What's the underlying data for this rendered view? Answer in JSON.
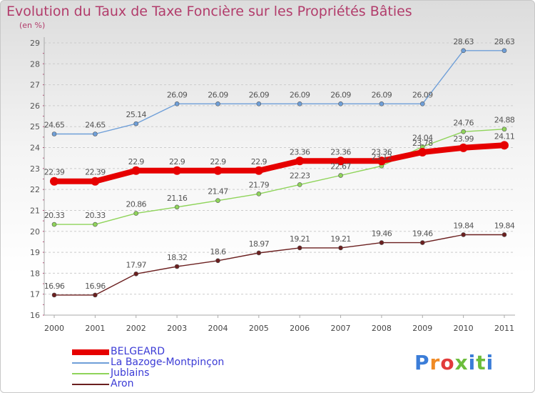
{
  "header": {
    "title": "Evolution du Taux de Taxe Foncière sur les Propriétés Bâties",
    "subtitle": "(en %)"
  },
  "logo": {
    "text": "Proxiti",
    "colors": [
      "#3b7dd8",
      "#f08a24",
      "#e23b3b",
      "#6cbd3c",
      "#3b7dd8",
      "#6cbd3c",
      "#3b7dd8"
    ]
  },
  "chart_data": {
    "type": "line",
    "title": "Evolution du Taux de Taxe Foncière sur les Propriétés Bâties",
    "ylabel": "(en %)",
    "categories": [
      "2000",
      "2001",
      "2002",
      "2003",
      "2004",
      "2005",
      "2006",
      "2007",
      "2008",
      "2009",
      "2010",
      "2011"
    ],
    "ylim": [
      16,
      29
    ],
    "yticks": [
      16,
      17,
      18,
      19,
      20,
      21,
      22,
      23,
      24,
      25,
      26,
      27,
      28,
      29
    ],
    "grid": "horizontal dashed",
    "legend_position": "bottom-left",
    "series": [
      {
        "name": "BELGEARD",
        "color": "#e60000",
        "width": 8,
        "values": [
          22.39,
          22.39,
          22.9,
          22.9,
          22.9,
          22.9,
          23.36,
          23.36,
          23.36,
          23.78,
          23.99,
          24.11
        ],
        "labels": [
          "22.39",
          "22.39",
          "22.9",
          "22.9",
          "22.9",
          "22.9",
          "23.36",
          "23.36",
          "23.36",
          "23.78",
          "23.99",
          "24.11"
        ]
      },
      {
        "name": "La Bazoge-Montpinçon",
        "color": "#6f9fd8",
        "width": 1.4,
        "values": [
          24.65,
          24.65,
          25.14,
          26.09,
          26.09,
          26.09,
          26.09,
          26.09,
          26.09,
          26.09,
          28.63,
          28.63
        ],
        "labels": [
          "24.65",
          "24.65",
          "25.14",
          "26.09",
          "26.09",
          "26.09",
          "26.09",
          "26.09",
          "26.09",
          "26.09",
          "28.63",
          "28.63"
        ]
      },
      {
        "name": "Jublains",
        "color": "#8fd45a",
        "width": 1.4,
        "values": [
          20.33,
          20.33,
          20.86,
          21.16,
          21.47,
          21.79,
          22.23,
          22.67,
          23.12,
          24.04,
          24.76,
          24.88
        ],
        "labels": [
          "20.33",
          "20.33",
          "20.86",
          "21.16",
          "21.47",
          "21.79",
          "22.23",
          "22.67",
          "23.12",
          "24.04",
          "24.76",
          "24.88"
        ]
      },
      {
        "name": "Aron",
        "color": "#6b1f1f",
        "width": 1.4,
        "values": [
          16.96,
          16.96,
          17.97,
          18.32,
          18.6,
          18.97,
          19.21,
          19.21,
          19.46,
          19.46,
          19.84,
          19.84
        ],
        "labels": [
          "16.96",
          "16.96",
          "17.97",
          "18.32",
          "18.6",
          "18.97",
          "19.21",
          "19.21",
          "19.46",
          "19.46",
          "19.84",
          "19.84"
        ]
      }
    ]
  }
}
